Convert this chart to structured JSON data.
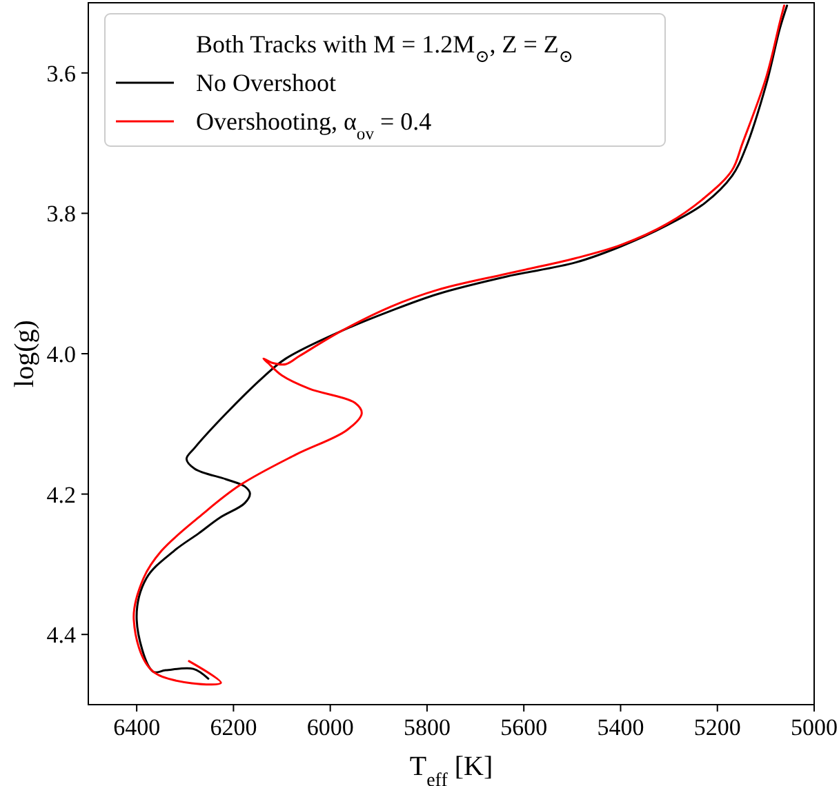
{
  "chart_data": {
    "type": "line",
    "xlabel": "T$_{eff}$ [K]",
    "ylabel": "log(g)",
    "legend_title": "Both Tracks with M = 1.2M$_{⊙}$, Z = Z$_{⊙}$",
    "legend": "top left",
    "grid": false,
    "marker": "none",
    "line_style": "solid",
    "xlim": [
      6500,
      5000
    ],
    "xticks": [
      6400,
      6200,
      6000,
      5800,
      5600,
      5400,
      5200,
      5000
    ],
    "ylim": [
      4.5,
      3.5
    ],
    "yticks": [
      3.6,
      3.8,
      {
        "value": 4,
        "label": "4.0"
      },
      4.2,
      4.4
    ],
    "series": [
      {
        "name": "No Overshoot",
        "color": "#000000",
        "x": [
          6252,
          6283,
          6340,
          6366,
          6400,
          6380,
          6323,
          6272,
          6229,
          6177,
          6166,
          6177,
          6215,
          6280,
          6297,
          6280,
          6215,
          6138,
          6092,
          5978,
          5875,
          5778,
          5635,
          5493,
          5399,
          5304,
          5227,
          5170,
          5142,
          5099,
          5071,
          5056
        ],
        "values": [
          4.463,
          4.449,
          4.451,
          4.453,
          4.379,
          4.32,
          4.281,
          4.256,
          4.234,
          4.213,
          4.199,
          4.189,
          4.179,
          4.164,
          4.15,
          4.134,
          4.085,
          4.033,
          4.007,
          3.968,
          3.939,
          3.915,
          3.89,
          3.87,
          3.847,
          3.817,
          3.786,
          3.747,
          3.708,
          3.616,
          3.537,
          3.504
        ]
      },
      {
        "name": "Overshooting, α$_{ov}$ = 0.4",
        "color": "#ff0000",
        "x": [
          6292,
          6226,
          6366,
          6406,
          6386,
          6349,
          6263,
          6186,
          6072,
          5966,
          5935,
          5949,
          6043,
          6100,
          6129,
          6138,
          6120,
          6092,
          6063,
          5978,
          5875,
          5778,
          5635,
          5493,
          5399,
          5304,
          5227,
          5170,
          5148,
          5099,
          5071,
          5062
        ],
        "values": [
          4.438,
          4.469,
          4.453,
          4.379,
          4.32,
          4.281,
          4.228,
          4.187,
          4.144,
          4.109,
          4.085,
          4.07,
          4.05,
          4.031,
          4.013,
          4.007,
          4.013,
          4.015,
          4.003,
          3.968,
          3.933,
          3.909,
          3.886,
          3.864,
          3.845,
          3.815,
          3.778,
          3.739,
          3.7,
          3.606,
          3.528,
          3.504
        ]
      }
    ]
  }
}
